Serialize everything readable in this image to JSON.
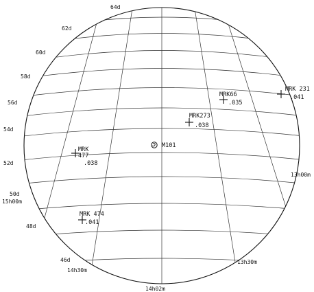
{
  "map": {
    "dec_labels": [
      "64d",
      "62d",
      "60d",
      "58d",
      "56d",
      "54d",
      "52d",
      "50d",
      "48d",
      "46d"
    ],
    "ra_labels": [
      "15h00m",
      "14h30m",
      "14h02m",
      "13h30m",
      "13h00m"
    ],
    "center_object": {
      "name": "M101",
      "symbol": "galaxy-symbol"
    },
    "objects": [
      {
        "name": "MRK 231",
        "z": ".041"
      },
      {
        "name": "MRK66",
        "z": ".035"
      },
      {
        "name": "MRK273",
        "z": ".038"
      },
      {
        "name": "MRK\n477",
        "z": ".038"
      },
      {
        "name": "MRK 474",
        "z": ".041"
      }
    ],
    "colors": {
      "ink": "#111111",
      "background": "#ffffff"
    }
  }
}
